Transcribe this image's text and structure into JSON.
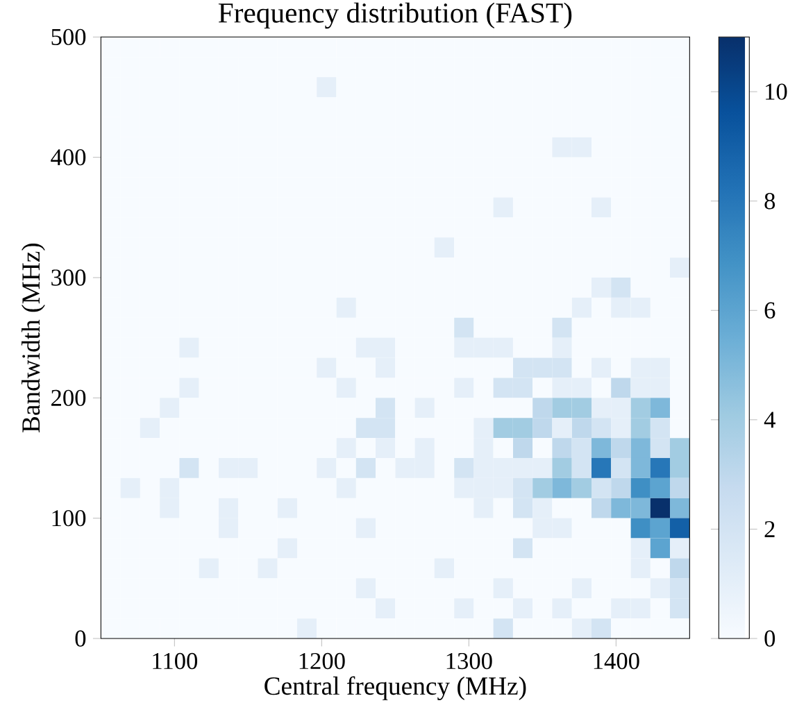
{
  "chart_data": {
    "type": "heatmap",
    "title": "Frequency distribution (FAST)",
    "xlabel": "Central frequency (MHz)",
    "ylabel": "Bandwidth (MHz)",
    "x": [
      1056.7,
      1070,
      1083.3,
      1096.7,
      1110,
      1123.3,
      1136.7,
      1150,
      1163.3,
      1176.7,
      1190,
      1203.3,
      1216.7,
      1230,
      1243.3,
      1256.7,
      1270,
      1283.3,
      1296.7,
      1310,
      1323.3,
      1336.7,
      1350,
      1363.3,
      1376.7,
      1390,
      1403.3,
      1416.7,
      1430,
      1443.3
    ],
    "y": [
      491.7,
      475,
      458.3,
      441.7,
      425,
      408.3,
      391.7,
      375,
      358.3,
      341.7,
      325,
      308.3,
      291.7,
      275,
      258.3,
      241.7,
      225,
      208.3,
      191.7,
      175,
      158.3,
      141.7,
      125,
      108.3,
      91.7,
      75,
      58.3,
      41.7,
      25,
      8.3
    ],
    "xlim": [
      1050,
      1450
    ],
    "ylim": [
      0,
      500
    ],
    "xticks": [
      1100,
      1200,
      1300,
      1400
    ],
    "yticks": [
      0,
      100,
      200,
      300,
      400,
      500
    ],
    "clim": [
      0,
      11
    ],
    "cticks": [
      0,
      2,
      4,
      6,
      8,
      10
    ],
    "cells": [
      [
        0,
        0,
        0,
        0,
        0,
        0,
        0,
        0,
        0,
        0,
        0,
        0,
        0,
        0,
        0,
        0,
        0,
        0,
        0,
        0,
        0,
        0,
        0,
        0,
        0,
        0,
        0,
        0,
        0,
        0
      ],
      [
        0,
        0,
        0,
        0,
        0,
        0,
        0,
        0,
        0,
        0,
        0,
        0,
        0,
        0,
        0,
        0,
        0,
        0,
        0,
        0,
        0,
        0,
        0,
        0,
        0,
        0,
        0,
        0,
        0,
        0
      ],
      [
        0,
        0,
        0,
        0,
        0,
        0,
        0,
        0,
        0,
        0,
        0,
        1,
        0,
        0,
        0,
        0,
        0,
        0,
        0,
        0,
        0,
        0,
        0,
        0,
        0,
        0,
        0,
        0,
        0,
        0
      ],
      [
        0,
        0,
        0,
        0,
        0,
        0,
        0,
        0,
        0,
        0,
        0,
        0,
        0,
        0,
        0,
        0,
        0,
        0,
        0,
        0,
        0,
        0,
        0,
        0,
        0,
        0,
        0,
        0,
        0,
        0
      ],
      [
        0,
        0,
        0,
        0,
        0,
        0,
        0,
        0,
        0,
        0,
        0,
        0,
        0,
        0,
        0,
        0,
        0,
        0,
        0,
        0,
        0,
        0,
        0,
        0,
        0,
        0,
        0,
        0,
        0,
        0
      ],
      [
        0,
        0,
        0,
        0,
        0,
        0,
        0,
        0,
        0,
        0,
        0,
        0,
        0,
        0,
        0,
        0,
        0,
        0,
        0,
        0,
        0,
        0,
        0,
        1,
        1,
        0,
        0,
        0,
        0,
        0
      ],
      [
        0,
        0,
        0,
        0,
        0,
        0,
        0,
        0,
        0,
        0,
        0,
        0,
        0,
        0,
        0,
        0,
        0,
        0,
        0,
        0,
        0,
        0,
        0,
        0,
        0,
        0,
        0,
        0,
        0,
        0
      ],
      [
        0,
        0,
        0,
        0,
        0,
        0,
        0,
        0,
        0,
        0,
        0,
        0,
        0,
        0,
        0,
        0,
        0,
        0,
        0,
        0,
        0,
        0,
        0,
        0,
        0,
        0,
        0,
        0,
        0,
        0
      ],
      [
        0,
        0,
        0,
        0,
        0,
        0,
        0,
        0,
        0,
        0,
        0,
        0,
        0,
        0,
        0,
        0,
        0,
        0,
        0,
        0,
        1,
        0,
        0,
        0,
        0,
        1,
        0,
        0,
        0,
        0
      ],
      [
        0,
        0,
        0,
        0,
        0,
        0,
        0,
        0,
        0,
        0,
        0,
        0,
        0,
        0,
        0,
        0,
        0,
        0,
        0,
        0,
        0,
        0,
        0,
        0,
        0,
        0,
        0,
        0,
        0,
        0
      ],
      [
        0,
        0,
        0,
        0,
        0,
        0,
        0,
        0,
        0,
        0,
        0,
        0,
        0,
        0,
        0,
        0,
        0,
        1,
        0,
        0,
        0,
        0,
        0,
        0,
        0,
        0,
        0,
        0,
        0,
        0
      ],
      [
        0,
        0,
        0,
        0,
        0,
        0,
        0,
        0,
        0,
        0,
        0,
        0,
        0,
        0,
        0,
        0,
        0,
        0,
        0,
        0,
        0,
        0,
        0,
        0,
        0,
        0,
        0,
        0,
        0,
        1
      ],
      [
        0,
        0,
        0,
        0,
        0,
        0,
        0,
        0,
        0,
        0,
        0,
        0,
        0,
        0,
        0,
        0,
        0,
        0,
        0,
        0,
        0,
        0,
        0,
        0,
        0,
        1,
        2,
        0,
        0,
        0
      ],
      [
        0,
        0,
        0,
        0,
        0,
        0,
        0,
        0,
        0,
        0,
        0,
        0,
        1,
        0,
        0,
        0,
        0,
        0,
        0,
        0,
        0,
        0,
        0,
        0,
        1,
        0,
        1,
        1,
        0,
        0
      ],
      [
        0,
        0,
        0,
        0,
        0,
        0,
        0,
        0,
        0,
        0,
        0,
        0,
        0,
        0,
        0,
        0,
        0,
        0,
        2,
        0,
        0,
        0,
        0,
        2,
        0,
        0,
        0,
        0,
        0,
        0
      ],
      [
        0,
        0,
        0,
        0,
        1,
        0,
        0,
        0,
        0,
        0,
        0,
        0,
        0,
        1,
        1,
        0,
        0,
        0,
        1,
        1,
        1,
        0,
        0,
        1,
        0,
        0,
        0,
        0,
        0,
        0
      ],
      [
        0,
        0,
        0,
        0,
        0,
        0,
        0,
        0,
        0,
        0,
        0,
        1,
        0,
        0,
        1,
        0,
        0,
        0,
        0,
        0,
        0,
        2,
        2,
        2,
        0,
        1,
        0,
        1,
        1,
        0
      ],
      [
        0,
        0,
        0,
        0,
        1,
        0,
        0,
        0,
        0,
        0,
        0,
        0,
        1,
        0,
        0,
        0,
        0,
        0,
        1,
        0,
        2,
        2,
        0,
        1,
        1,
        0,
        3,
        1,
        1,
        0
      ],
      [
        0,
        0,
        0,
        1,
        0,
        0,
        0,
        0,
        0,
        0,
        0,
        0,
        0,
        0,
        2,
        0,
        1,
        0,
        0,
        0,
        0,
        0,
        3,
        4,
        4,
        1,
        1,
        4,
        5,
        0
      ],
      [
        0,
        0,
        1,
        0,
        0,
        0,
        0,
        0,
        0,
        0,
        0,
        0,
        0,
        2,
        2,
        0,
        0,
        0,
        0,
        1,
        4,
        4,
        3,
        1,
        3,
        2,
        1,
        4,
        2,
        0
      ],
      [
        0,
        0,
        0,
        0,
        0,
        0,
        0,
        0,
        0,
        0,
        0,
        0,
        1,
        0,
        1,
        0,
        1,
        0,
        0,
        1,
        0,
        3,
        0,
        3,
        2,
        5,
        3,
        5,
        2,
        4
      ],
      [
        0,
        0,
        0,
        0,
        2,
        0,
        1,
        1,
        0,
        0,
        0,
        1,
        0,
        2,
        0,
        1,
        1,
        0,
        2,
        1,
        1,
        1,
        1,
        4,
        2,
        8,
        2,
        5,
        8,
        4
      ],
      [
        0,
        1,
        0,
        1,
        0,
        0,
        0,
        0,
        0,
        0,
        0,
        0,
        1,
        0,
        0,
        0,
        0,
        0,
        1,
        1,
        1,
        2,
        4,
        5,
        4,
        2,
        3,
        7,
        6,
        3
      ],
      [
        0,
        0,
        0,
        1,
        0,
        0,
        1,
        0,
        0,
        1,
        0,
        0,
        0,
        0,
        0,
        0,
        0,
        0,
        0,
        1,
        0,
        2,
        1,
        0,
        0,
        3,
        5,
        5,
        11,
        5
      ],
      [
        0,
        0,
        0,
        0,
        0,
        0,
        1,
        0,
        0,
        0,
        0,
        0,
        0,
        1,
        0,
        0,
        0,
        0,
        0,
        0,
        0,
        0,
        1,
        1,
        0,
        0,
        0,
        7,
        6,
        9
      ],
      [
        0,
        0,
        0,
        0,
        0,
        0,
        0,
        0,
        0,
        1,
        0,
        0,
        0,
        0,
        0,
        0,
        0,
        0,
        0,
        0,
        0,
        2,
        0,
        0,
        0,
        0,
        0,
        1,
        6,
        1
      ],
      [
        0,
        0,
        0,
        0,
        0,
        1,
        0,
        0,
        1,
        0,
        0,
        0,
        0,
        0,
        0,
        0,
        0,
        1,
        0,
        0,
        0,
        0,
        0,
        0,
        0,
        0,
        0,
        1,
        0,
        3
      ],
      [
        0,
        0,
        0,
        0,
        0,
        0,
        0,
        0,
        0,
        0,
        0,
        0,
        0,
        1,
        0,
        0,
        0,
        0,
        0,
        0,
        1,
        0,
        0,
        0,
        1,
        0,
        0,
        0,
        1,
        2
      ],
      [
        0,
        0,
        0,
        0,
        0,
        0,
        0,
        0,
        0,
        0,
        0,
        0,
        0,
        0,
        1,
        0,
        0,
        0,
        1,
        0,
        0,
        1,
        0,
        1,
        0,
        0,
        1,
        1,
        0,
        2
      ],
      [
        0,
        0,
        0,
        0,
        0,
        0,
        0,
        0,
        0,
        0,
        1,
        0,
        0,
        0,
        0,
        0,
        0,
        0,
        0,
        0,
        2,
        0,
        0,
        0,
        1,
        2,
        0,
        0,
        0,
        0
      ]
    ]
  }
}
